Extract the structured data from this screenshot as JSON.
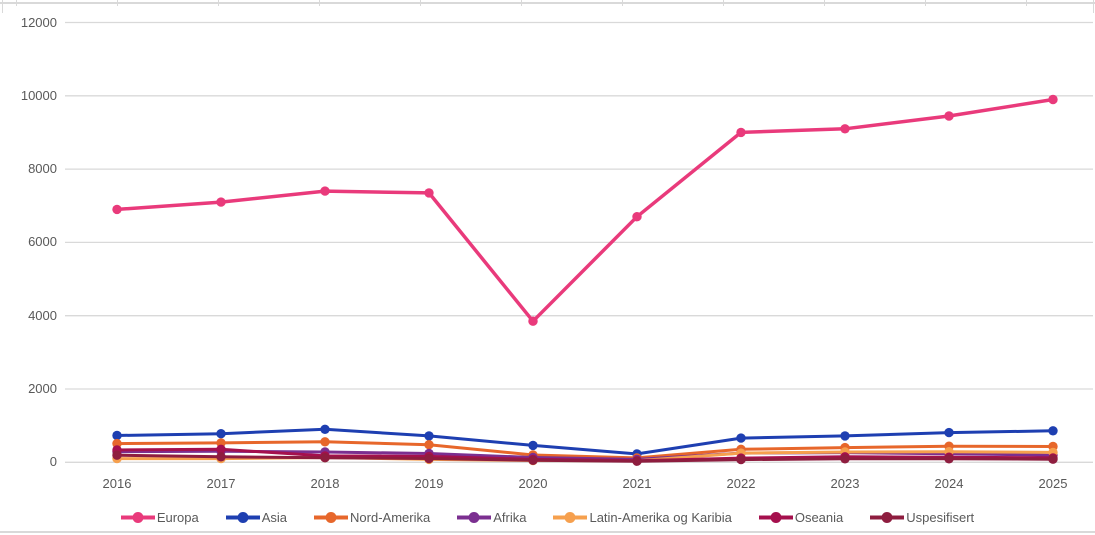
{
  "chart_data": {
    "type": "line",
    "title": "",
    "xlabel": "",
    "ylabel": "",
    "categories": [
      "2016",
      "2017",
      "2018",
      "2019",
      "2020",
      "2021",
      "2022",
      "2023",
      "2024",
      "2025"
    ],
    "series": [
      {
        "name": "Europa",
        "color": "#e93a7b",
        "values": [
          6900,
          7100,
          7400,
          7350,
          3850,
          6700,
          9000,
          9100,
          9450,
          9900
        ]
      },
      {
        "name": "Asia",
        "color": "#1e3fb1",
        "values": [
          730,
          780,
          900,
          720,
          460,
          230,
          660,
          720,
          810,
          860
        ]
      },
      {
        "name": "Nord-Amerika",
        "color": "#e7672b",
        "values": [
          510,
          530,
          560,
          480,
          200,
          120,
          355,
          400,
          440,
          430
        ]
      },
      {
        "name": "Afrika",
        "color": "#7b2f90",
        "values": [
          290,
          300,
          280,
          240,
          130,
          80,
          250,
          265,
          235,
          195
        ]
      },
      {
        "name": "Latin-Amerika og Karibia",
        "color": "#f6a04e",
        "values": [
          100,
          100,
          130,
          80,
          50,
          40,
          250,
          280,
          290,
          270
        ]
      },
      {
        "name": "Oseania",
        "color": "#a5104d",
        "values": [
          335,
          355,
          175,
          160,
          80,
          45,
          115,
          150,
          140,
          120
        ]
      },
      {
        "name": "Uspesifisert",
        "color": "#8e1d3f",
        "values": [
          195,
          150,
          125,
          105,
          55,
          30,
          75,
          95,
          95,
          85
        ]
      }
    ],
    "ylim": [
      0,
      12000
    ],
    "yticks": [
      0,
      2000,
      4000,
      6000,
      8000,
      10000,
      12000
    ],
    "grid": "horizontal",
    "legend_position": "bottom"
  },
  "colors": {
    "gridline": "#d9d9d9",
    "axis_text": "#595959",
    "frame": "#d9d9d9",
    "background": "#ffffff"
  }
}
